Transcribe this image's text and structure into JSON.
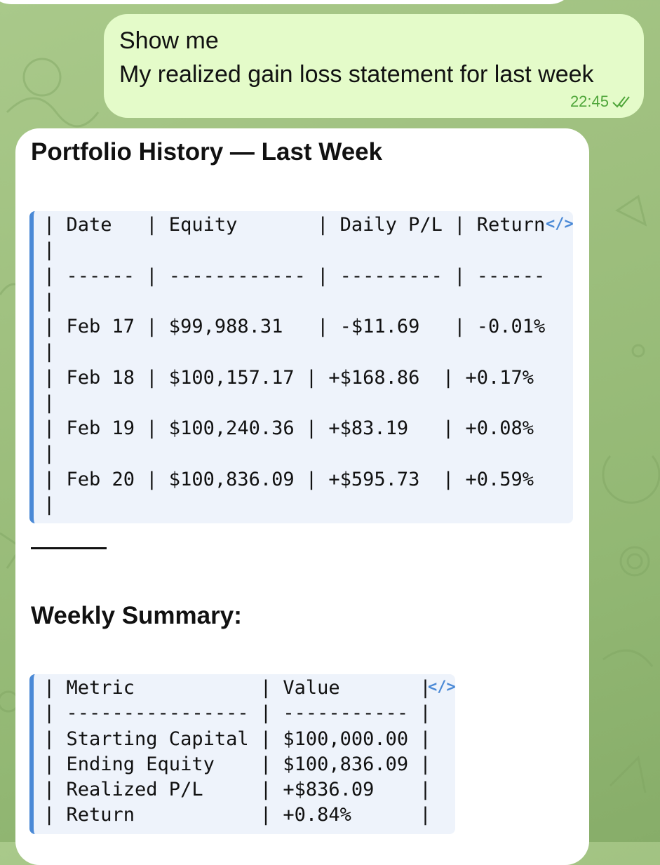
{
  "chat": {
    "outgoing": {
      "lines": [
        "Show me",
        "My realized gain loss statement for last week"
      ],
      "time": "22:45",
      "status_icon": "double-check-icon"
    },
    "incoming": {
      "title": "Portfolio History — Last Week",
      "history_table": {
        "lines": [
          "| Date   | Equity       | Daily P/L | Return",
          "|",
          "| ------ | ------------ | --------- | ------",
          "|",
          "| Feb 17 | $99,988.31   | -$11.69   | -0.01%",
          "|",
          "| Feb 18 | $100,157.17 | +$168.86  | +0.17%",
          "|",
          "| Feb 19 | $100,240.36 | +$83.19   | +0.08%",
          "|",
          "| Feb 20 | $100,836.09 | +$595.73  | +0.59%",
          "|"
        ],
        "copy_icon": "</>"
      },
      "summary_title": "Weekly Summary:",
      "summary_table": {
        "lines": [
          "| Metric           | Value       |",
          "| ---------------- | ----------- |",
          "| Starting Capital | $100,000.00 |",
          "| Ending Equity    | $100,836.09 |",
          "| Realized P/L     | +$836.09    |",
          "| Return           | +0.84%      |"
        ],
        "copy_icon": "</>"
      }
    }
  },
  "colors": {
    "outgoing_bubble": "#e4fbc9",
    "incoming_bubble": "#ffffff",
    "code_background": "#eef3fb",
    "code_accent": "#4a89d6",
    "timestamp": "#4fa63a"
  }
}
